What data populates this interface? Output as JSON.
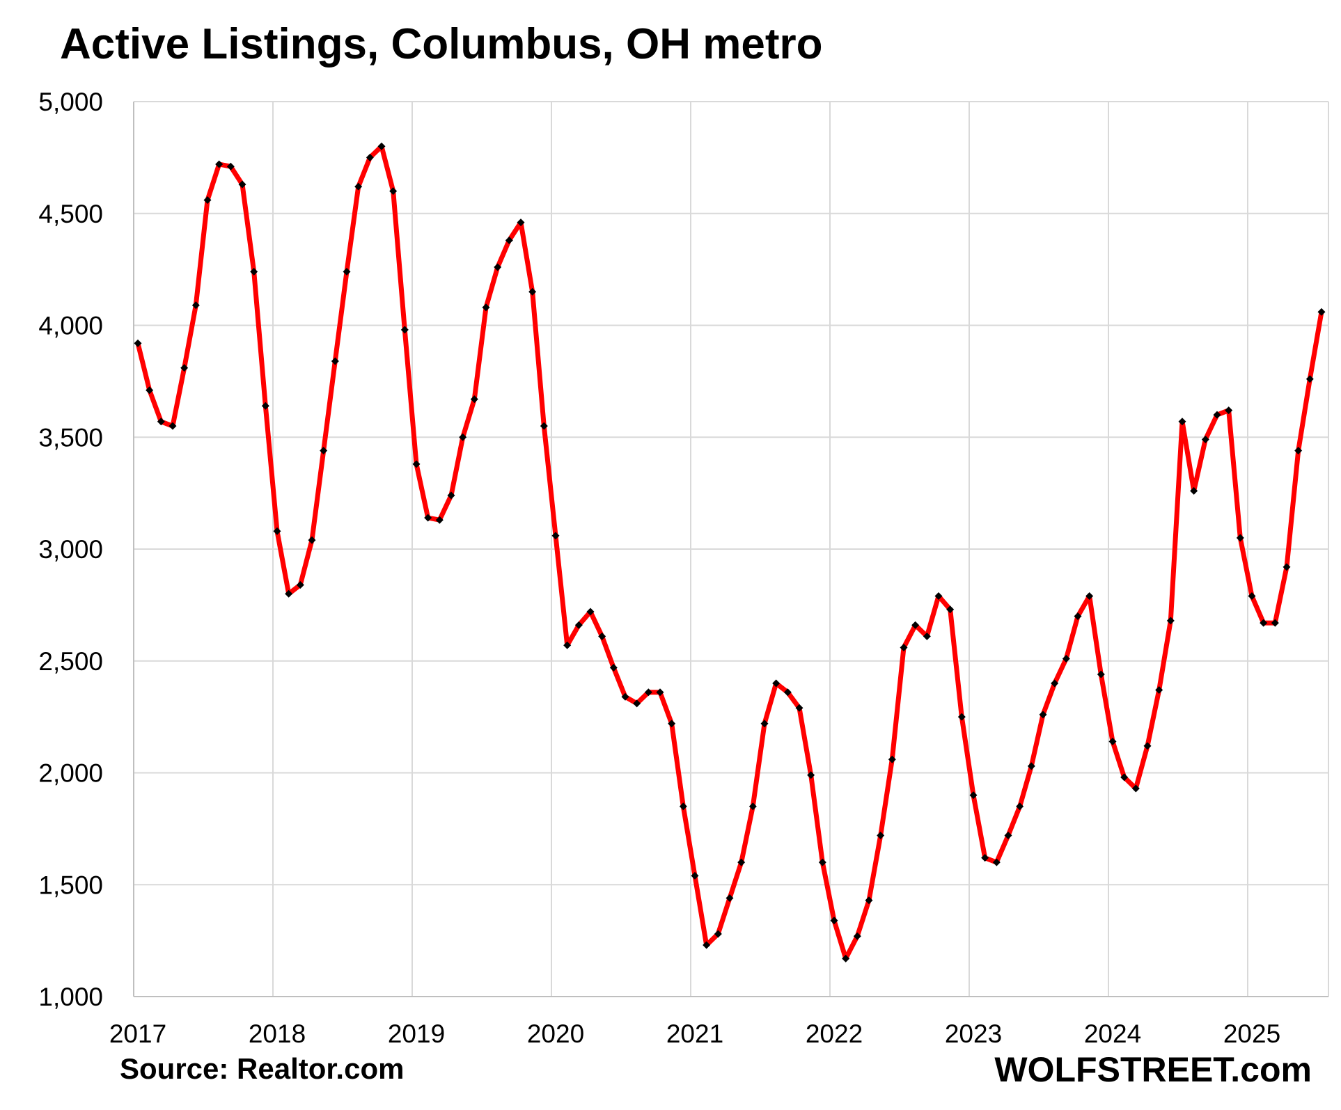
{
  "chart_data": {
    "type": "line",
    "title": "Active Listings, Columbus, OH metro",
    "source": "Source: Realtor.com",
    "brand": "WOLFSTREET.com",
    "xlabel": "",
    "ylabel": "",
    "ylim": [
      1000,
      5000
    ],
    "y_ticks": [
      "1,000",
      "1,500",
      "2,000",
      "2,500",
      "3,000",
      "3,500",
      "4,000",
      "4,500",
      "5,000"
    ],
    "x_ticks": [
      "2017",
      "2018",
      "2019",
      "2020",
      "2021",
      "2022",
      "2023",
      "2024",
      "2025"
    ],
    "grid": true,
    "series_color": "#ff0000",
    "marker_color": "#000000",
    "x_start": "2017-01",
    "series": [
      {
        "values": [
          3920,
          3710,
          3570,
          3550,
          3810,
          4090,
          4560,
          4720,
          4710,
          4630,
          4240,
          3640,
          3080,
          2800,
          2840,
          3040,
          3440,
          3840,
          4240,
          4620,
          4750,
          4800,
          4600,
          3980,
          3380,
          3140,
          3130,
          3240,
          3500,
          3670,
          4080,
          4260,
          4380,
          4460,
          4150,
          3550,
          3060,
          2570,
          2660,
          2720,
          2610,
          2470,
          2340,
          2310,
          2360,
          2360,
          2220,
          1850,
          1540,
          1230,
          1280,
          1440,
          1600,
          1850,
          2220,
          2400,
          2360,
          2290,
          1990,
          1600,
          1340,
          1170,
          1270,
          1430,
          1720,
          2060,
          2560,
          2660,
          2610,
          2790,
          2730,
          2250,
          1900,
          1620,
          1600,
          1720,
          1850,
          2030,
          2260,
          2400,
          2510,
          2700,
          2790,
          2440,
          2140,
          1980,
          1930,
          2120,
          2370,
          2680,
          3570,
          3260,
          3490,
          3600,
          3620,
          3050,
          2790,
          2670,
          2670,
          2920,
          3440,
          3760,
          4060
        ]
      }
    ]
  }
}
